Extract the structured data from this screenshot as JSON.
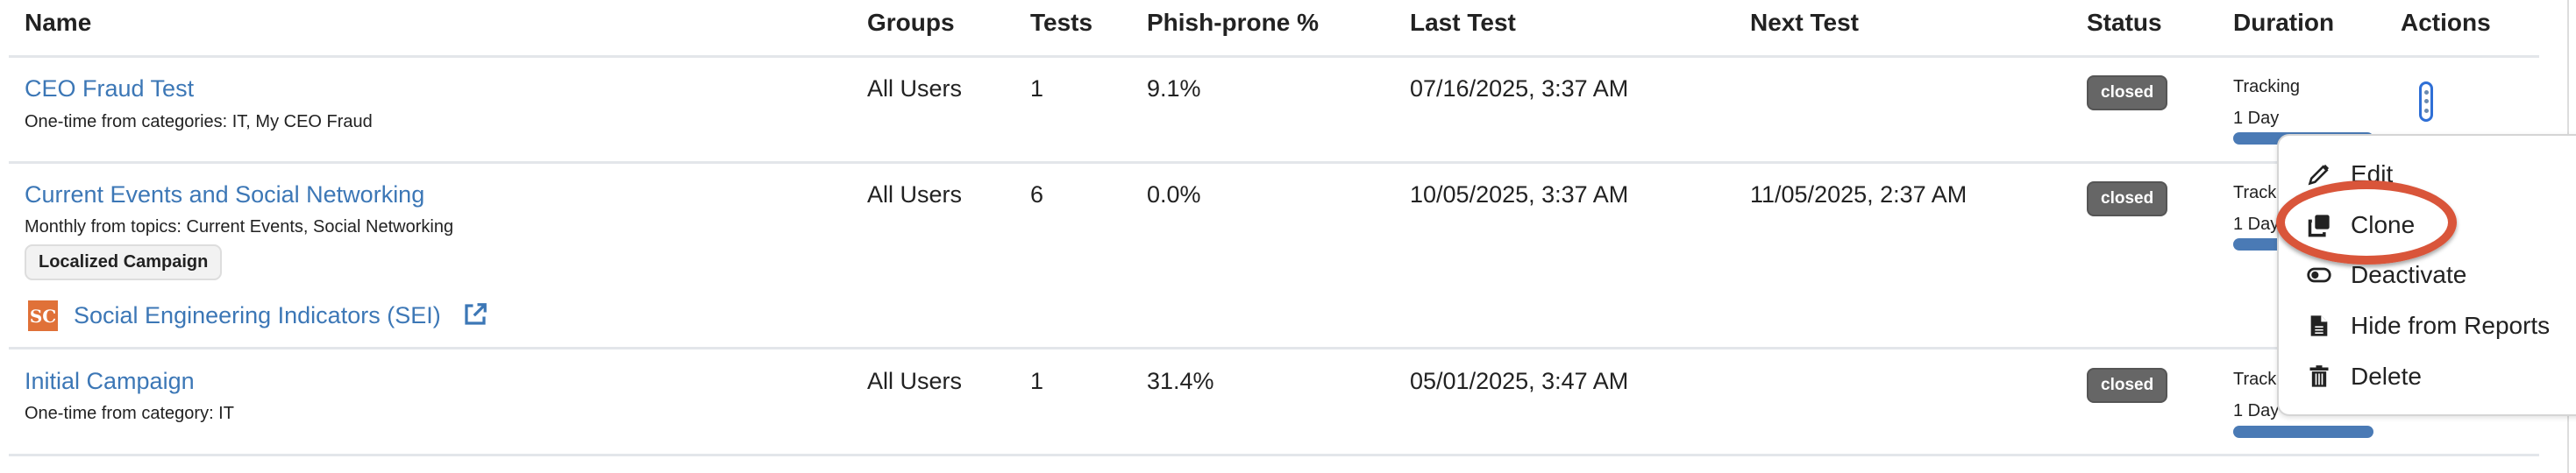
{
  "columns": [
    "Name",
    "Groups",
    "Tests",
    "Phish-prone %",
    "Last Test",
    "Next Test",
    "Status",
    "Duration",
    "Actions"
  ],
  "rows": [
    {
      "name": "CEO Fraud Test",
      "subtitle": "One-time from categories: IT, My CEO Fraud",
      "groups": "All Users",
      "tests": "1",
      "phish_prone": "9.1%",
      "last_test": "07/16/2025, 3:37 AM",
      "next_test": "",
      "status": "closed",
      "duration_label": "Tracking",
      "duration": "1 Day",
      "duration_progress": 1.0
    },
    {
      "name": "Current Events and Social Networking",
      "subtitle": "Monthly from topics: Current Events, Social Networking",
      "tag": "Localized Campaign",
      "sei_link": "Social Engineering Indicators (SEI)",
      "sei_logo": "SC",
      "groups": "All Users",
      "tests": "6",
      "phish_prone": "0.0%",
      "last_test": "10/05/2025, 3:37 AM",
      "next_test": "11/05/2025, 2:37 AM",
      "status": "closed",
      "duration_label": "Tracking",
      "duration": "1 Day",
      "duration_progress": 1.0
    },
    {
      "name": "Initial Campaign",
      "subtitle": "One-time from category: IT",
      "groups": "All Users",
      "tests": "1",
      "phish_prone": "31.4%",
      "last_test": "05/01/2025, 3:47 AM",
      "next_test": "",
      "status": "closed",
      "duration_label": "Tracking",
      "duration": "1 Day",
      "duration_progress": 1.0
    }
  ],
  "actions_menu": {
    "items": [
      {
        "label": "Edit",
        "icon": "pencil-icon"
      },
      {
        "label": "Clone",
        "icon": "clone-icon",
        "highlighted": true
      },
      {
        "label": "Deactivate",
        "icon": "toggle-icon"
      },
      {
        "label": "Hide from Reports",
        "icon": "file-icon"
      },
      {
        "label": "Delete",
        "icon": "trash-icon"
      }
    ]
  },
  "colors": {
    "link": "#3c77b6",
    "badge": "#666666",
    "progress": "#4a7ab5",
    "highlight": "#d9553a",
    "sei_logo": "#e07138"
  }
}
